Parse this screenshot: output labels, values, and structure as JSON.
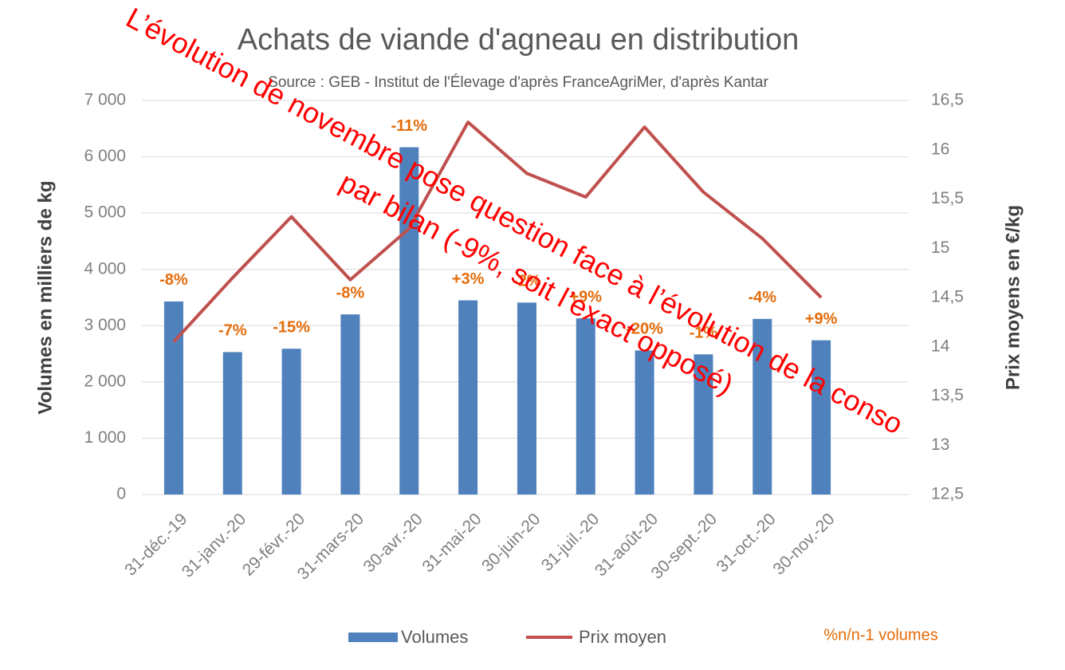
{
  "chart_data": {
    "type": "bar_line",
    "title": "Achats de viande d'agneau en distribution",
    "subtitle": "Source : GEB - Institut de l'Élevage d'après FranceAgriMer, d'après Kantar",
    "y_label": "Volumes en milliers de kg",
    "y2_label": "Prix moyens en €/kg",
    "categories": [
      "31-déc.-19",
      "31-janv.-20",
      "29-févr.-20",
      "31-mars-20",
      "30-avr.-20",
      "31-mai-20",
      "30-juin-20",
      "31-juil.-20",
      "31-août-20",
      "30-sept.-20",
      "31-oct.-20",
      "30-nov.-20"
    ],
    "series": [
      {
        "name": "Volumes",
        "type": "bar",
        "color": "#4f81bd",
        "values": [
          3430,
          2530,
          2590,
          3200,
          6170,
          3450,
          3410,
          3130,
          2560,
          2490,
          3120,
          2740
        ]
      },
      {
        "name": "Prix moyen",
        "type": "line",
        "axis": "y2",
        "color": "#c0504d",
        "values": [
          14.05,
          14.7,
          15.32,
          14.68,
          15.2,
          16.28,
          15.76,
          15.52,
          16.23,
          15.57,
          15.1,
          14.5
        ]
      }
    ],
    "change_labels": [
      "-8%",
      "-7%",
      "-15%",
      "-8%",
      "-11%",
      "+3%",
      "-2%",
      "+9%",
      "-20%",
      "-1%",
      "-4%",
      "+9%"
    ],
    "change_note": "%n/n-1 volumes",
    "annotation": [
      "L’évolution de novembre pose question face à l’évolution de la conso",
      "par bilan (-9%, soit l’exact opposé)"
    ],
    "ylim": [
      0,
      7000
    ],
    "yticks": [
      0,
      {
        "value": 1000,
        "label": "1 000"
      },
      {
        "value": 2000,
        "label": "2 000"
      },
      {
        "value": 3000,
        "label": "3 000"
      },
      {
        "value": 4000,
        "label": "4 000"
      },
      {
        "value": 5000,
        "label": "5 000"
      },
      {
        "value": 6000,
        "label": "6 000"
      },
      {
        "value": 7000,
        "label": "7 000"
      }
    ],
    "y2lim": [
      12.5,
      16.5
    ],
    "y2ticks": [
      {
        "value": 12.5,
        "label": "12,5"
      },
      13,
      {
        "value": 13.5,
        "label": "13,5"
      },
      14,
      {
        "value": 14.5,
        "label": "14,5"
      },
      15,
      {
        "value": 15.5,
        "label": "15,5"
      },
      16,
      {
        "value": 16.5,
        "label": "16,5"
      }
    ],
    "grid": true
  }
}
